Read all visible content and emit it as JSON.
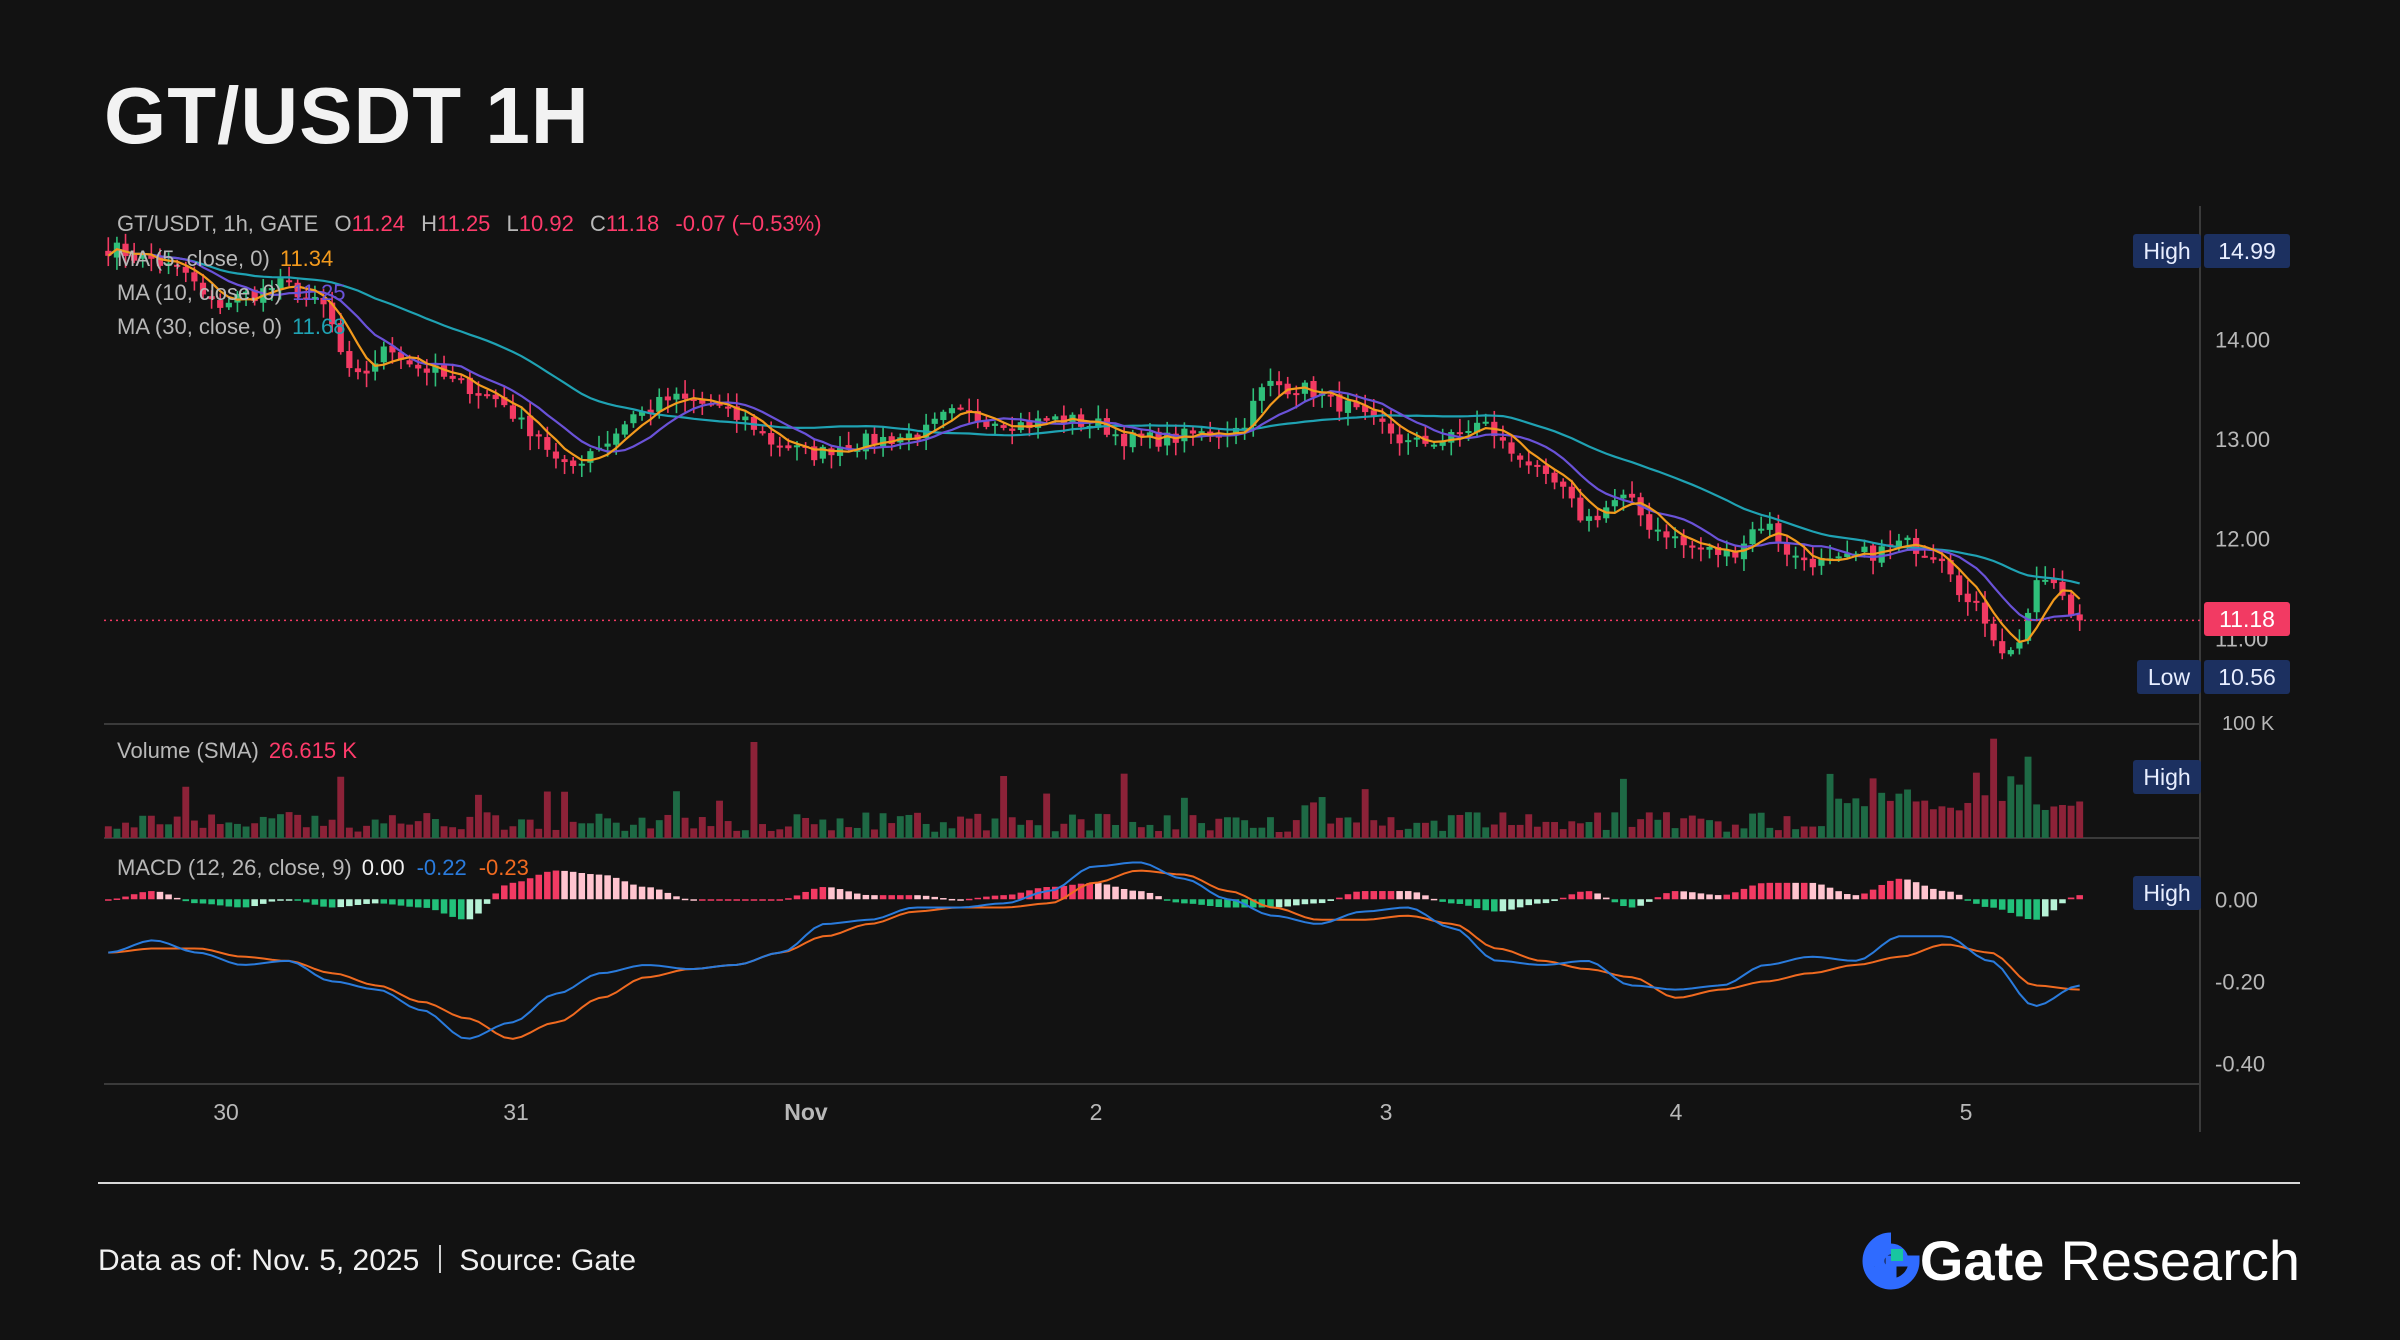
{
  "title": "GT/USDT 1H",
  "legend": {
    "symbol": "GT/USDT, 1h, GATE",
    "open_label": "O",
    "open": "11.24",
    "high_label": "H",
    "high": "11.25",
    "low_label": "L",
    "low": "10.92",
    "close_label": "C",
    "close": "11.18",
    "change": "-0.07 (−0.53%)",
    "ma5_label": "MA (5, close, 0)",
    "ma5_value": "11.34",
    "ma10_label": "MA (10, close, 0)",
    "ma10_value": "11.25",
    "ma30_label": "MA (30, close, 0)",
    "ma30_value": "11.68",
    "volume_label": "Volume (SMA)",
    "volume_value": "26.615 K",
    "macd_label": "MACD (12, 26, close, 9)",
    "macd_hist": "0.00",
    "macd_line": "-0.22",
    "macd_signal": "-0.23"
  },
  "badges": {
    "high_label": "High",
    "high_value": "14.99",
    "low_label": "Low",
    "low_value": "10.56",
    "last_price": "11.18",
    "volume_high": "High",
    "macd_high": "High",
    "volume_axis_tick": "100 K"
  },
  "colors": {
    "background": "#121212",
    "up": "#2fbf7a",
    "down": "#f23a63",
    "ma5": "#f29a1d",
    "ma10": "#6a52d8",
    "ma30": "#1fa2b3",
    "macd_line": "#2a7bdc",
    "signal_line": "#f06a20",
    "vol_up": "#1e6a45",
    "vol_down": "#8c2238"
  },
  "chart_data": {
    "type": "candlestick",
    "x_tick_labels": [
      "30",
      "31",
      "Nov",
      "2",
      "3",
      "4",
      "5"
    ],
    "y_ticks_price": [
      "14.00",
      "13.00",
      "12.00",
      "11.00"
    ],
    "y_ticks_macd": [
      "0.00",
      "-0.20",
      "-0.40"
    ],
    "price_ylim": [
      10.2,
      15.3
    ],
    "macd_ylim": [
      -0.45,
      0.12
    ],
    "close_anchors": [
      14.92,
      14.82,
      14.7,
      14.35,
      14.45,
      14.55,
      14.35,
      13.6,
      13.9,
      13.7,
      13.55,
      13.4,
      13.1,
      12.7,
      12.95,
      13.25,
      13.4,
      13.35,
      13.2,
      12.95,
      12.85,
      12.95,
      13.0,
      13.05,
      13.25,
      13.2,
      13.15,
      13.2,
      13.15,
      13.0,
      13.0,
      13.05,
      13.1,
      13.55,
      13.5,
      13.35,
      13.15,
      12.95,
      13.0,
      13.15,
      12.85,
      12.55,
      12.2,
      12.4,
      12.1,
      11.9,
      11.85,
      12.15,
      11.8,
      11.75,
      11.85,
      11.95,
      11.85,
      11.3,
      10.85,
      11.6,
      11.18
    ],
    "volume_range": [
      0,
      100000
    ],
    "macd_anchors": [
      -0.13,
      -0.1,
      -0.13,
      -0.16,
      -0.15,
      -0.2,
      -0.22,
      -0.27,
      -0.34,
      -0.3,
      -0.23,
      -0.18,
      -0.16,
      -0.17,
      -0.16,
      -0.13,
      -0.06,
      -0.05,
      -0.02,
      -0.02,
      -0.01,
      0.02,
      0.08,
      0.09,
      0.05,
      0.0,
      -0.04,
      -0.06,
      -0.03,
      -0.02,
      -0.07,
      -0.15,
      -0.16,
      -0.15,
      -0.21,
      -0.22,
      -0.21,
      -0.16,
      -0.14,
      -0.15,
      -0.09,
      -0.09,
      -0.15,
      -0.26,
      -0.21
    ],
    "signal_anchors": [
      -0.13,
      -0.12,
      -0.12,
      -0.14,
      -0.15,
      -0.18,
      -0.21,
      -0.25,
      -0.29,
      -0.34,
      -0.3,
      -0.24,
      -0.19,
      -0.17,
      -0.16,
      -0.13,
      -0.09,
      -0.06,
      -0.03,
      -0.02,
      -0.02,
      -0.01,
      0.04,
      0.07,
      0.06,
      0.02,
      -0.02,
      -0.05,
      -0.05,
      -0.04,
      -0.06,
      -0.12,
      -0.15,
      -0.17,
      -0.19,
      -0.24,
      -0.22,
      -0.2,
      -0.18,
      -0.16,
      -0.14,
      -0.11,
      -0.13,
      -0.21,
      -0.22
    ]
  }
}
